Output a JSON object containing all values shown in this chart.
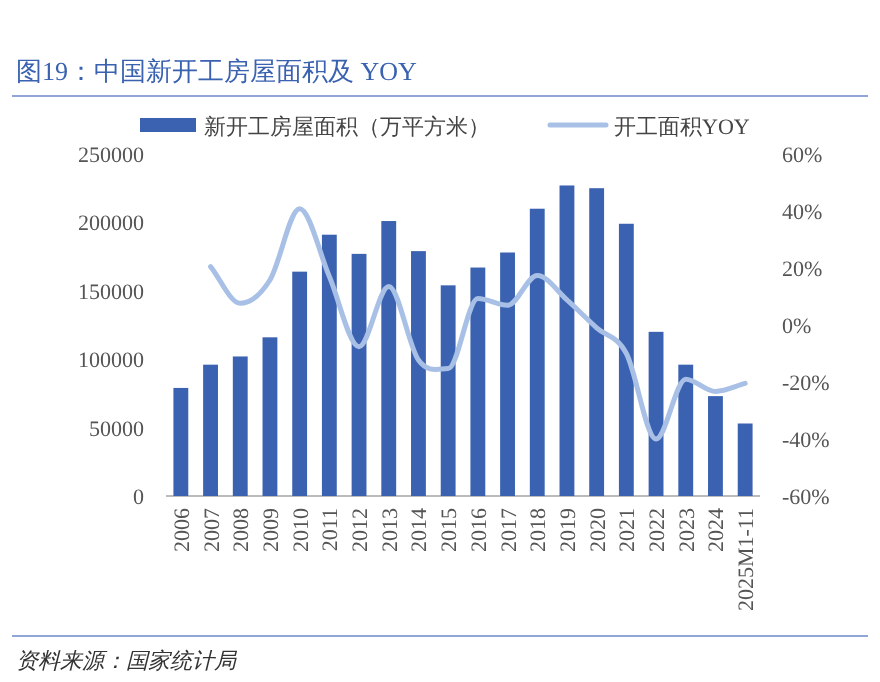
{
  "chart_data": {
    "type": "bar",
    "title": "图19：中国新开工房屋面积及 YOY",
    "annotations": [
      "资料来源：国家统计局"
    ],
    "categories": [
      "2006",
      "2007",
      "2008",
      "2009",
      "2010",
      "2011",
      "2012",
      "2013",
      "2014",
      "2015",
      "2016",
      "2017",
      "2018",
      "2019",
      "2020",
      "2021",
      "2022",
      "2023",
      "2024",
      "2025M1-11"
    ],
    "series": [
      {
        "name": "新开工房屋面积（万平方米）",
        "color": "#3a62b0",
        "values": [
          79000,
          96000,
          102000,
          116000,
          164000,
          191000,
          177000,
          201000,
          179000,
          154000,
          167000,
          178000,
          210000,
          227000,
          225000,
          199000,
          120000,
          96000,
          73000,
          53000
        ]
      },
      {
        "name": "开工面积YOY",
        "type": "line",
        "axis": "y2",
        "color": "#a8bfe6",
        "values": [
          null,
          20.5,
          7.6,
          15.8,
          40.8,
          17,
          -7.6,
          13.5,
          -12.3,
          -15.3,
          9.3,
          6.9,
          17.4,
          8.8,
          -1,
          -10,
          -40,
          -19,
          -23.3,
          -20.5
        ]
      }
    ],
    "ylim": [
      0,
      250000
    ],
    "yticks": [
      0,
      50000,
      100000,
      150000,
      200000,
      250000
    ],
    "y2lim": [
      -60,
      60
    ],
    "y2ticks": [
      {
        "value": -60,
        "label": "-60%"
      },
      {
        "value": -40,
        "label": "-40%"
      },
      {
        "value": -20,
        "label": "-20%"
      },
      {
        "value": 0,
        "label": "0%"
      },
      {
        "value": 20,
        "label": "20%"
      },
      {
        "value": 40,
        "label": "40%"
      },
      {
        "value": 60,
        "label": "60%"
      }
    ],
    "legend": "top",
    "grid": false
  }
}
